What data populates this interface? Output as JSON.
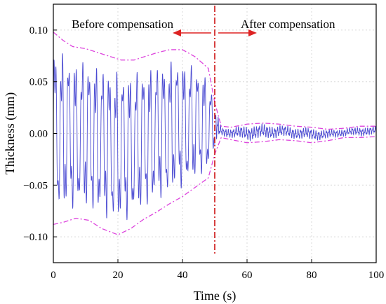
{
  "chart_data": {
    "type": "line",
    "title": "",
    "xlabel": "Time (s)",
    "ylabel": "Thickness (mm)",
    "xlim": [
      0,
      100
    ],
    "ylim": [
      -0.125,
      0.125
    ],
    "xticks": [
      0,
      20,
      40,
      60,
      80,
      100
    ],
    "xtick_labels": [
      "0",
      "20",
      "40",
      "60",
      "80",
      "100"
    ],
    "yticks": [
      -0.1,
      -0.05,
      0.0,
      0.05,
      0.1
    ],
    "ytick_labels": [
      "−0.10",
      "−0.05",
      "0.00",
      "0.05",
      "0.10"
    ],
    "grid": true,
    "legend": "none",
    "colors": {
      "signal": "#4b4bd2",
      "envelope": "#dd44dd",
      "divider": "#cc1111",
      "arrow": "#dd2222",
      "grid": "#d9d9d9"
    },
    "compensation_time": 50,
    "annotations": {
      "before": "Before compensation",
      "after": "After compensation"
    },
    "series": [
      {
        "role": "signal",
        "style": "solid",
        "segments": [
          {
            "x_start": 0,
            "x_end": 50,
            "cycle_s": 2.1,
            "zero_offset": -0.005
          },
          {
            "x_start": 50,
            "x_end": 100,
            "cycle_s": 0.8,
            "zero_offset": 0.003
          }
        ]
      },
      {
        "role": "upper-envelope",
        "style": "dash-dot",
        "x": [
          0,
          3,
          6,
          10,
          14,
          18,
          21,
          25,
          28,
          32,
          36,
          40,
          44,
          48,
          50,
          52,
          55,
          60,
          65,
          70,
          75,
          80,
          85,
          90,
          95,
          100
        ],
        "y": [
          0.098,
          0.09,
          0.084,
          0.082,
          0.078,
          0.074,
          0.071,
          0.071,
          0.074,
          0.078,
          0.081,
          0.081,
          0.074,
          0.063,
          0.03,
          0.007,
          0.006,
          0.009,
          0.01,
          0.009,
          0.007,
          0.006,
          0.004,
          0.005,
          0.007,
          0.007
        ]
      },
      {
        "role": "lower-envelope",
        "style": "dash-dot",
        "x": [
          0,
          3,
          7,
          11,
          15,
          20,
          24,
          28,
          32,
          36,
          40,
          44,
          48,
          50,
          52,
          55,
          60,
          65,
          70,
          75,
          80,
          85,
          90,
          95,
          100
        ],
        "y": [
          -0.088,
          -0.086,
          -0.082,
          -0.084,
          -0.092,
          -0.098,
          -0.092,
          -0.083,
          -0.076,
          -0.068,
          -0.061,
          -0.052,
          -0.043,
          -0.02,
          -0.004,
          -0.006,
          -0.009,
          -0.008,
          -0.006,
          -0.007,
          -0.009,
          -0.007,
          -0.004,
          -0.004,
          -0.003
        ]
      }
    ]
  }
}
